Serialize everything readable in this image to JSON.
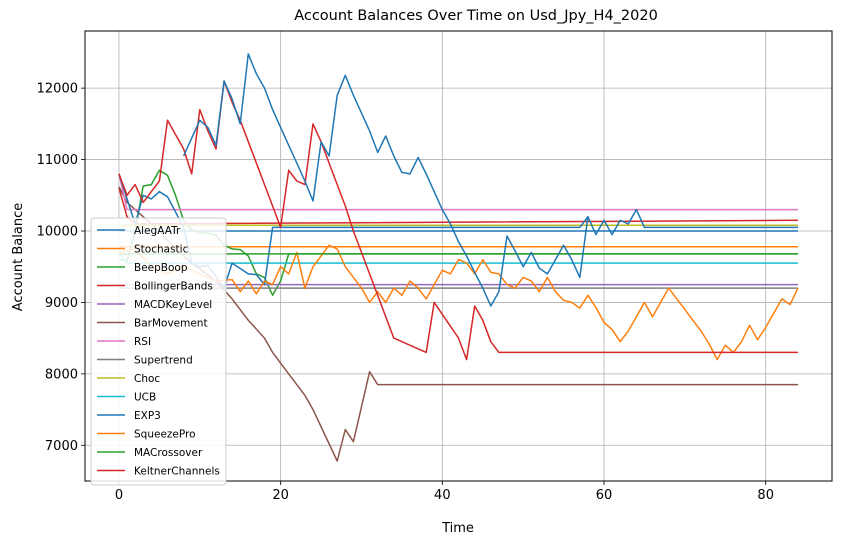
{
  "chart_data": {
    "type": "line",
    "title": "Account Balances Over Time on Usd_Jpy_H4_2020",
    "xlabel": "Time",
    "ylabel": "Account Balance",
    "xlim": [
      -4.2,
      88.2
    ],
    "ylim": [
      6500,
      12800
    ],
    "xticks": [
      0,
      20,
      40,
      60,
      80
    ],
    "yticks": [
      7000,
      8000,
      9000,
      10000,
      11000,
      12000
    ],
    "grid": true,
    "legend_position": "lower-left",
    "series": [
      {
        "name": "AlegAATr",
        "color": "#1f77b4",
        "points": [
          [
            0,
            10000
          ],
          [
            1,
            10000
          ],
          [
            2,
            10000
          ],
          [
            3,
            10000
          ],
          [
            4,
            10000
          ],
          [
            8,
            10000
          ],
          [
            84,
            10000
          ]
        ]
      },
      {
        "name": "Stochastic",
        "color": "#ff7f0e",
        "points": [
          [
            0,
            9780
          ],
          [
            84,
            9780
          ]
        ]
      },
      {
        "name": "BeepBoop",
        "color": "#2ca02c",
        "points": [
          [
            0,
            9600
          ],
          [
            1,
            9580
          ],
          [
            2,
            10000
          ],
          [
            3,
            10630
          ],
          [
            4,
            10650
          ],
          [
            5,
            10850
          ],
          [
            6,
            10780
          ],
          [
            7,
            10500
          ],
          [
            8,
            10150
          ],
          [
            9,
            10020
          ],
          [
            10,
            9980
          ],
          [
            11,
            9970
          ],
          [
            12,
            9940
          ],
          [
            13,
            9800
          ],
          [
            14,
            9750
          ],
          [
            15,
            9740
          ],
          [
            16,
            9650
          ],
          [
            17,
            9400
          ],
          [
            18,
            9350
          ],
          [
            19,
            9100
          ],
          [
            20,
            9300
          ],
          [
            21,
            9680
          ],
          [
            84,
            9680
          ]
        ]
      },
      {
        "name": "BollingerBands",
        "color": "#d62728",
        "points": [
          [
            0,
            10600
          ],
          [
            1,
            10200
          ],
          [
            2,
            10100
          ],
          [
            3,
            10100
          ],
          [
            84,
            10150
          ]
        ]
      },
      {
        "name": "MACDKeyLevel",
        "color": "#9467bd",
        "points": [
          [
            0,
            9250
          ],
          [
            84,
            9250
          ]
        ]
      },
      {
        "name": "BarMovement",
        "color": "#8c564b",
        "points": [
          [
            0,
            10620
          ],
          [
            1,
            10400
          ],
          [
            3,
            10200
          ],
          [
            5,
            10000
          ],
          [
            7,
            9750
          ],
          [
            9,
            9550
          ],
          [
            12,
            9300
          ],
          [
            14,
            9050
          ],
          [
            16,
            8750
          ],
          [
            18,
            8500
          ],
          [
            19,
            8300
          ],
          [
            21,
            8000
          ],
          [
            23,
            7700
          ],
          [
            24,
            7500
          ],
          [
            27,
            6780
          ],
          [
            28,
            7220
          ],
          [
            29,
            7050
          ],
          [
            31,
            8030
          ],
          [
            32,
            7850
          ],
          [
            84,
            7850
          ]
        ]
      },
      {
        "name": "RSI",
        "color": "#e377c2",
        "points": [
          [
            0,
            10800
          ],
          [
            1,
            10300
          ],
          [
            84,
            10300
          ]
        ]
      },
      {
        "name": "Supertrend",
        "color": "#7f7f7f",
        "points": [
          [
            0,
            9200
          ],
          [
            84,
            9200
          ]
        ]
      },
      {
        "name": "Choc",
        "color": "#bcbd22",
        "points": [
          [
            0,
            10080
          ],
          [
            84,
            10080
          ]
        ]
      },
      {
        "name": "UCB",
        "color": "#17becf",
        "points": [
          [
            0,
            9700
          ],
          [
            1,
            9550
          ],
          [
            84,
            9550
          ]
        ]
      },
      {
        "name": "EXP3",
        "color": "#1f77b4",
        "points": [
          [
            0,
            10800
          ],
          [
            2,
            10100
          ],
          [
            3,
            10500
          ],
          [
            4,
            10450
          ],
          [
            5,
            10550
          ],
          [
            6,
            10480
          ],
          [
            8,
            10050
          ],
          [
            9,
            9550
          ],
          [
            10,
            9500
          ],
          [
            11,
            9520
          ],
          [
            13,
            9200
          ],
          [
            14,
            9550
          ],
          [
            16,
            9400
          ],
          [
            17,
            9390
          ],
          [
            18,
            9250
          ],
          [
            19,
            10050
          ],
          [
            57,
            10050
          ],
          [
            58,
            10200
          ],
          [
            59,
            9950
          ],
          [
            60,
            10150
          ],
          [
            61,
            9950
          ],
          [
            62,
            10150
          ],
          [
            63,
            10100
          ],
          [
            64,
            10300
          ],
          [
            65,
            10050
          ],
          [
            84,
            10050
          ]
        ]
      },
      {
        "name": "SqueezePro",
        "color": "#ff7f0e",
        "points": [
          [
            0,
            9700
          ],
          [
            2,
            9750
          ],
          [
            4,
            9500
          ],
          [
            6,
            9400
          ],
          [
            8,
            9500
          ],
          [
            10,
            9400
          ],
          [
            12,
            9300
          ],
          [
            14,
            9320
          ],
          [
            15,
            9150
          ],
          [
            16,
            9300
          ],
          [
            17,
            9120
          ],
          [
            18,
            9300
          ],
          [
            19,
            9250
          ],
          [
            20,
            9500
          ],
          [
            21,
            9400
          ],
          [
            22,
            9700
          ],
          [
            23,
            9200
          ],
          [
            24,
            9500
          ],
          [
            25,
            9650
          ],
          [
            26,
            9800
          ],
          [
            27,
            9750
          ],
          [
            28,
            9500
          ],
          [
            29,
            9350
          ],
          [
            30,
            9200
          ],
          [
            31,
            9000
          ],
          [
            32,
            9150
          ],
          [
            33,
            9000
          ],
          [
            34,
            9200
          ],
          [
            35,
            9100
          ],
          [
            36,
            9300
          ],
          [
            37,
            9200
          ],
          [
            38,
            9050
          ],
          [
            39,
            9250
          ],
          [
            40,
            9450
          ],
          [
            41,
            9400
          ],
          [
            42,
            9600
          ],
          [
            43,
            9550
          ],
          [
            44,
            9400
          ],
          [
            45,
            9600
          ],
          [
            46,
            9420
          ],
          [
            47,
            9400
          ],
          [
            48,
            9250
          ],
          [
            49,
            9200
          ],
          [
            50,
            9350
          ],
          [
            51,
            9300
          ],
          [
            52,
            9150
          ],
          [
            53,
            9350
          ],
          [
            54,
            9150
          ],
          [
            55,
            9030
          ],
          [
            56,
            9000
          ],
          [
            57,
            8920
          ],
          [
            58,
            9100
          ],
          [
            59,
            8930
          ],
          [
            60,
            8720
          ],
          [
            61,
            8620
          ],
          [
            62,
            8450
          ],
          [
            63,
            8600
          ],
          [
            64,
            8800
          ],
          [
            65,
            9000
          ],
          [
            66,
            8800
          ],
          [
            67,
            9000
          ],
          [
            68,
            9200
          ],
          [
            69,
            9050
          ],
          [
            70,
            8900
          ],
          [
            71,
            8750
          ],
          [
            72,
            8600
          ],
          [
            73,
            8420
          ],
          [
            74,
            8200
          ],
          [
            75,
            8400
          ],
          [
            76,
            8300
          ],
          [
            77,
            8450
          ],
          [
            78,
            8680
          ],
          [
            79,
            8480
          ],
          [
            80,
            8650
          ],
          [
            81,
            8850
          ],
          [
            82,
            9050
          ],
          [
            83,
            8970
          ],
          [
            84,
            9200
          ]
        ]
      },
      {
        "name": "MACrossover",
        "color": "#2ca02c",
        "points": [
          [
            0,
            9680
          ],
          [
            84,
            9680
          ]
        ]
      },
      {
        "name": "KeltnerChannels",
        "color": "#d62728",
        "points": [
          [
            0,
            10800
          ],
          [
            1,
            10500
          ],
          [
            2,
            10650
          ],
          [
            3,
            10400
          ],
          [
            4,
            10550
          ],
          [
            5,
            10700
          ],
          [
            6,
            11550
          ],
          [
            8,
            11150
          ],
          [
            9,
            10800
          ],
          [
            10,
            11700
          ],
          [
            11,
            11400
          ],
          [
            12,
            11150
          ],
          [
            13,
            12100
          ],
          [
            14,
            11800
          ],
          [
            15,
            11550
          ],
          [
            16,
            11250
          ],
          [
            17,
            10950
          ],
          [
            18,
            10650
          ],
          [
            19,
            10350
          ],
          [
            20,
            10050
          ],
          [
            21,
            10850
          ],
          [
            22,
            10700
          ],
          [
            23,
            10650
          ],
          [
            24,
            11500
          ],
          [
            25,
            11250
          ],
          [
            26,
            10950
          ],
          [
            27,
            10650
          ],
          [
            28,
            10350
          ],
          [
            29,
            10000
          ],
          [
            30,
            9700
          ],
          [
            31,
            9400
          ],
          [
            32,
            9100
          ],
          [
            33,
            8800
          ],
          [
            34,
            8500
          ],
          [
            38,
            8300
          ],
          [
            39,
            9000
          ],
          [
            42,
            8500
          ],
          [
            43,
            8200
          ],
          [
            44,
            8950
          ],
          [
            45,
            8750
          ],
          [
            46,
            8450
          ],
          [
            47,
            8300
          ],
          [
            84,
            8300
          ]
        ]
      },
      {
        "name": "",
        "color": "#1f77b4",
        "points": [
          [
            8,
            11050
          ],
          [
            9,
            11300
          ],
          [
            10,
            11550
          ],
          [
            11,
            11450
          ],
          [
            12,
            11200
          ],
          [
            13,
            12100
          ],
          [
            14,
            11850
          ],
          [
            15,
            11500
          ],
          [
            16,
            12480
          ],
          [
            17,
            12200
          ],
          [
            18,
            12000
          ],
          [
            19,
            11700
          ],
          [
            20,
            11450
          ],
          [
            21,
            11200
          ],
          [
            22,
            10950
          ],
          [
            23,
            10700
          ],
          [
            24,
            10420
          ],
          [
            25,
            11250
          ],
          [
            26,
            11050
          ],
          [
            27,
            11900
          ],
          [
            28,
            12180
          ],
          [
            29,
            11900
          ],
          [
            30,
            11650
          ],
          [
            31,
            11400
          ],
          [
            32,
            11100
          ],
          [
            33,
            11330
          ],
          [
            34,
            11050
          ],
          [
            35,
            10820
          ],
          [
            36,
            10800
          ],
          [
            37,
            11030
          ],
          [
            38,
            10800
          ],
          [
            39,
            10550
          ],
          [
            40,
            10300
          ],
          [
            41,
            10100
          ],
          [
            42,
            9850
          ],
          [
            43,
            9650
          ],
          [
            44,
            9420
          ],
          [
            45,
            9200
          ],
          [
            46,
            8950
          ],
          [
            47,
            9150
          ],
          [
            48,
            9930
          ],
          [
            49,
            9720
          ],
          [
            50,
            9500
          ],
          [
            51,
            9700
          ],
          [
            52,
            9480
          ],
          [
            53,
            9400
          ],
          [
            54,
            9600
          ],
          [
            55,
            9800
          ],
          [
            56,
            9600
          ],
          [
            57,
            9350
          ],
          [
            58,
            10200
          ]
        ]
      }
    ]
  }
}
